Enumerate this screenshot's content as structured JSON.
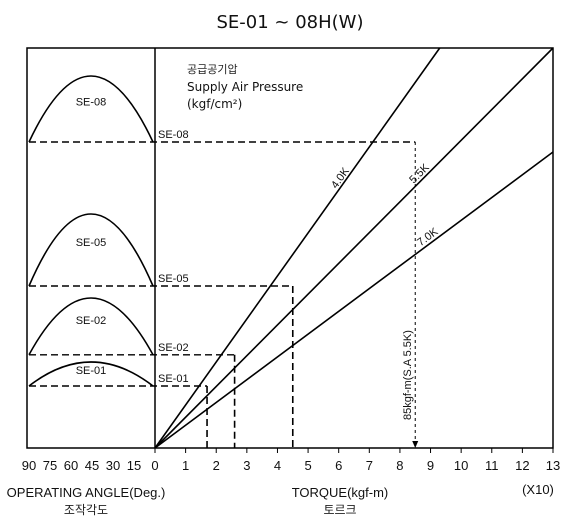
{
  "chart_data": {
    "type": "line",
    "title": "SE-01 ~ 08H(W)",
    "pressure_title_ko": "공급공기압",
    "pressure_title_en": "Supply Air Pressure",
    "pressure_unit": "(kgf/cm²)",
    "x_right": {
      "label": "TORQUE(kgf-m)",
      "label_ko": "토르크",
      "multiplier": "(X10)",
      "range": [
        0,
        13
      ],
      "ticks": [
        "0",
        "1",
        "2",
        "3",
        "4",
        "5",
        "6",
        "7",
        "8",
        "9",
        "10",
        "11",
        "12",
        "13"
      ]
    },
    "x_left": {
      "label": "OPERATING ANGLE(Deg.)",
      "label_ko": "조작각도",
      "ticks": [
        "90",
        "75",
        "60",
        "45",
        "30",
        "15",
        "0"
      ]
    },
    "lines": [
      {
        "label": "4.0K",
        "x_at_top": 9.3
      },
      {
        "label": "5.5K",
        "x_at_top": 13.0
      },
      {
        "label": "7.0K",
        "x_at_top": 13.0,
        "y_frac_at_13": 0.74
      }
    ],
    "models": [
      {
        "label": "SE-08",
        "level": 0.765,
        "arc_peak": 0.93,
        "torque": 8.5
      },
      {
        "label": "SE-05",
        "level": 0.405,
        "arc_peak": 0.585,
        "torque": 4.5
      },
      {
        "label": "SE-02",
        "level": 0.233,
        "arc_peak": 0.375,
        "torque": 2.6
      },
      {
        "label": "SE-01",
        "level": 0.155,
        "arc_peak": 0.215,
        "torque": 1.7
      }
    ],
    "annotation": "85kgf-m(S.A 5.5K)"
  }
}
